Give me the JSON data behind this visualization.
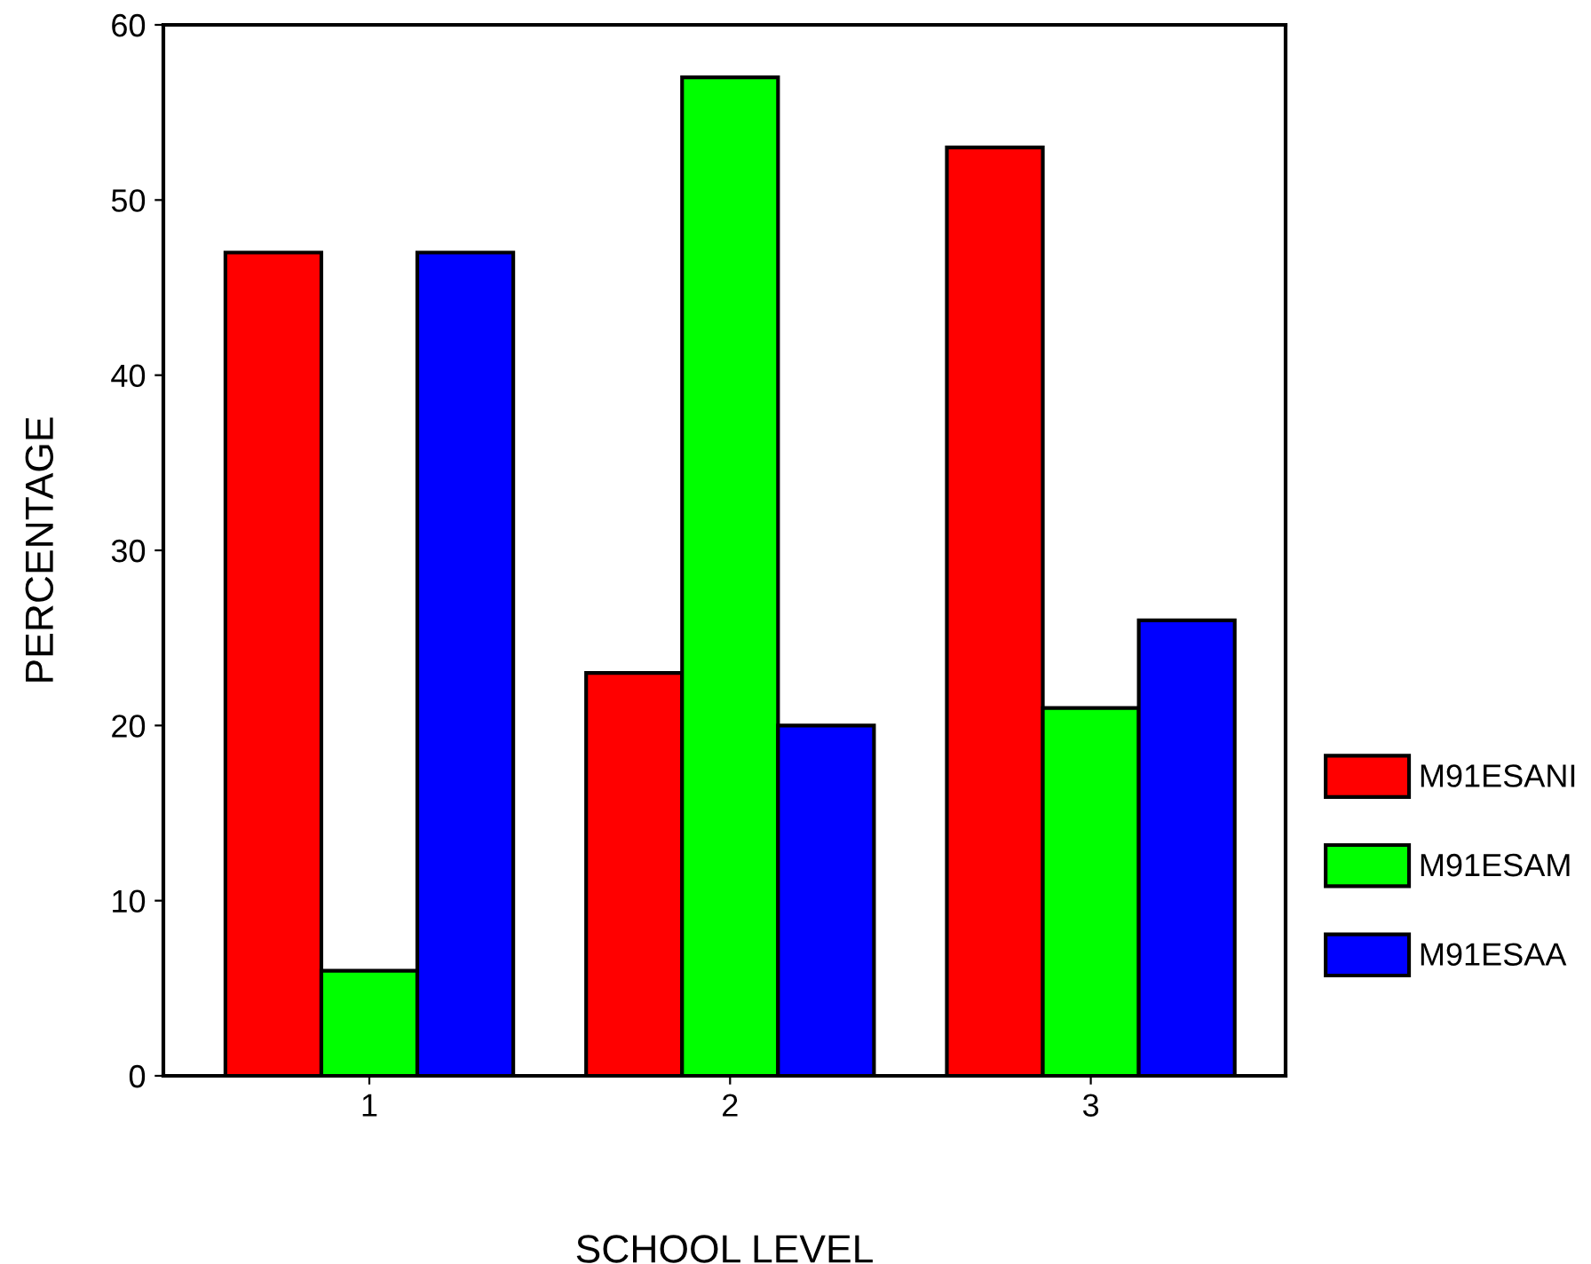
{
  "chart_data": {
    "type": "bar",
    "xlabel": "SCHOOL LEVEL",
    "ylabel": "PERCENTAGE",
    "categories": [
      "1",
      "2",
      "3"
    ],
    "series": [
      {
        "name": "M91ESANI",
        "color": "#ff0000",
        "values": [
          47,
          23,
          53
        ]
      },
      {
        "name": "M91ESAM",
        "color": "#00ff00",
        "values": [
          6,
          57,
          21
        ]
      },
      {
        "name": "M91ESAA",
        "color": "#0000ff",
        "values": [
          47,
          20,
          26
        ]
      }
    ],
    "ylim": [
      0,
      60
    ],
    "yticks": [
      0,
      10,
      20,
      30,
      40,
      50,
      60
    ],
    "grid": false,
    "legend": "right"
  }
}
